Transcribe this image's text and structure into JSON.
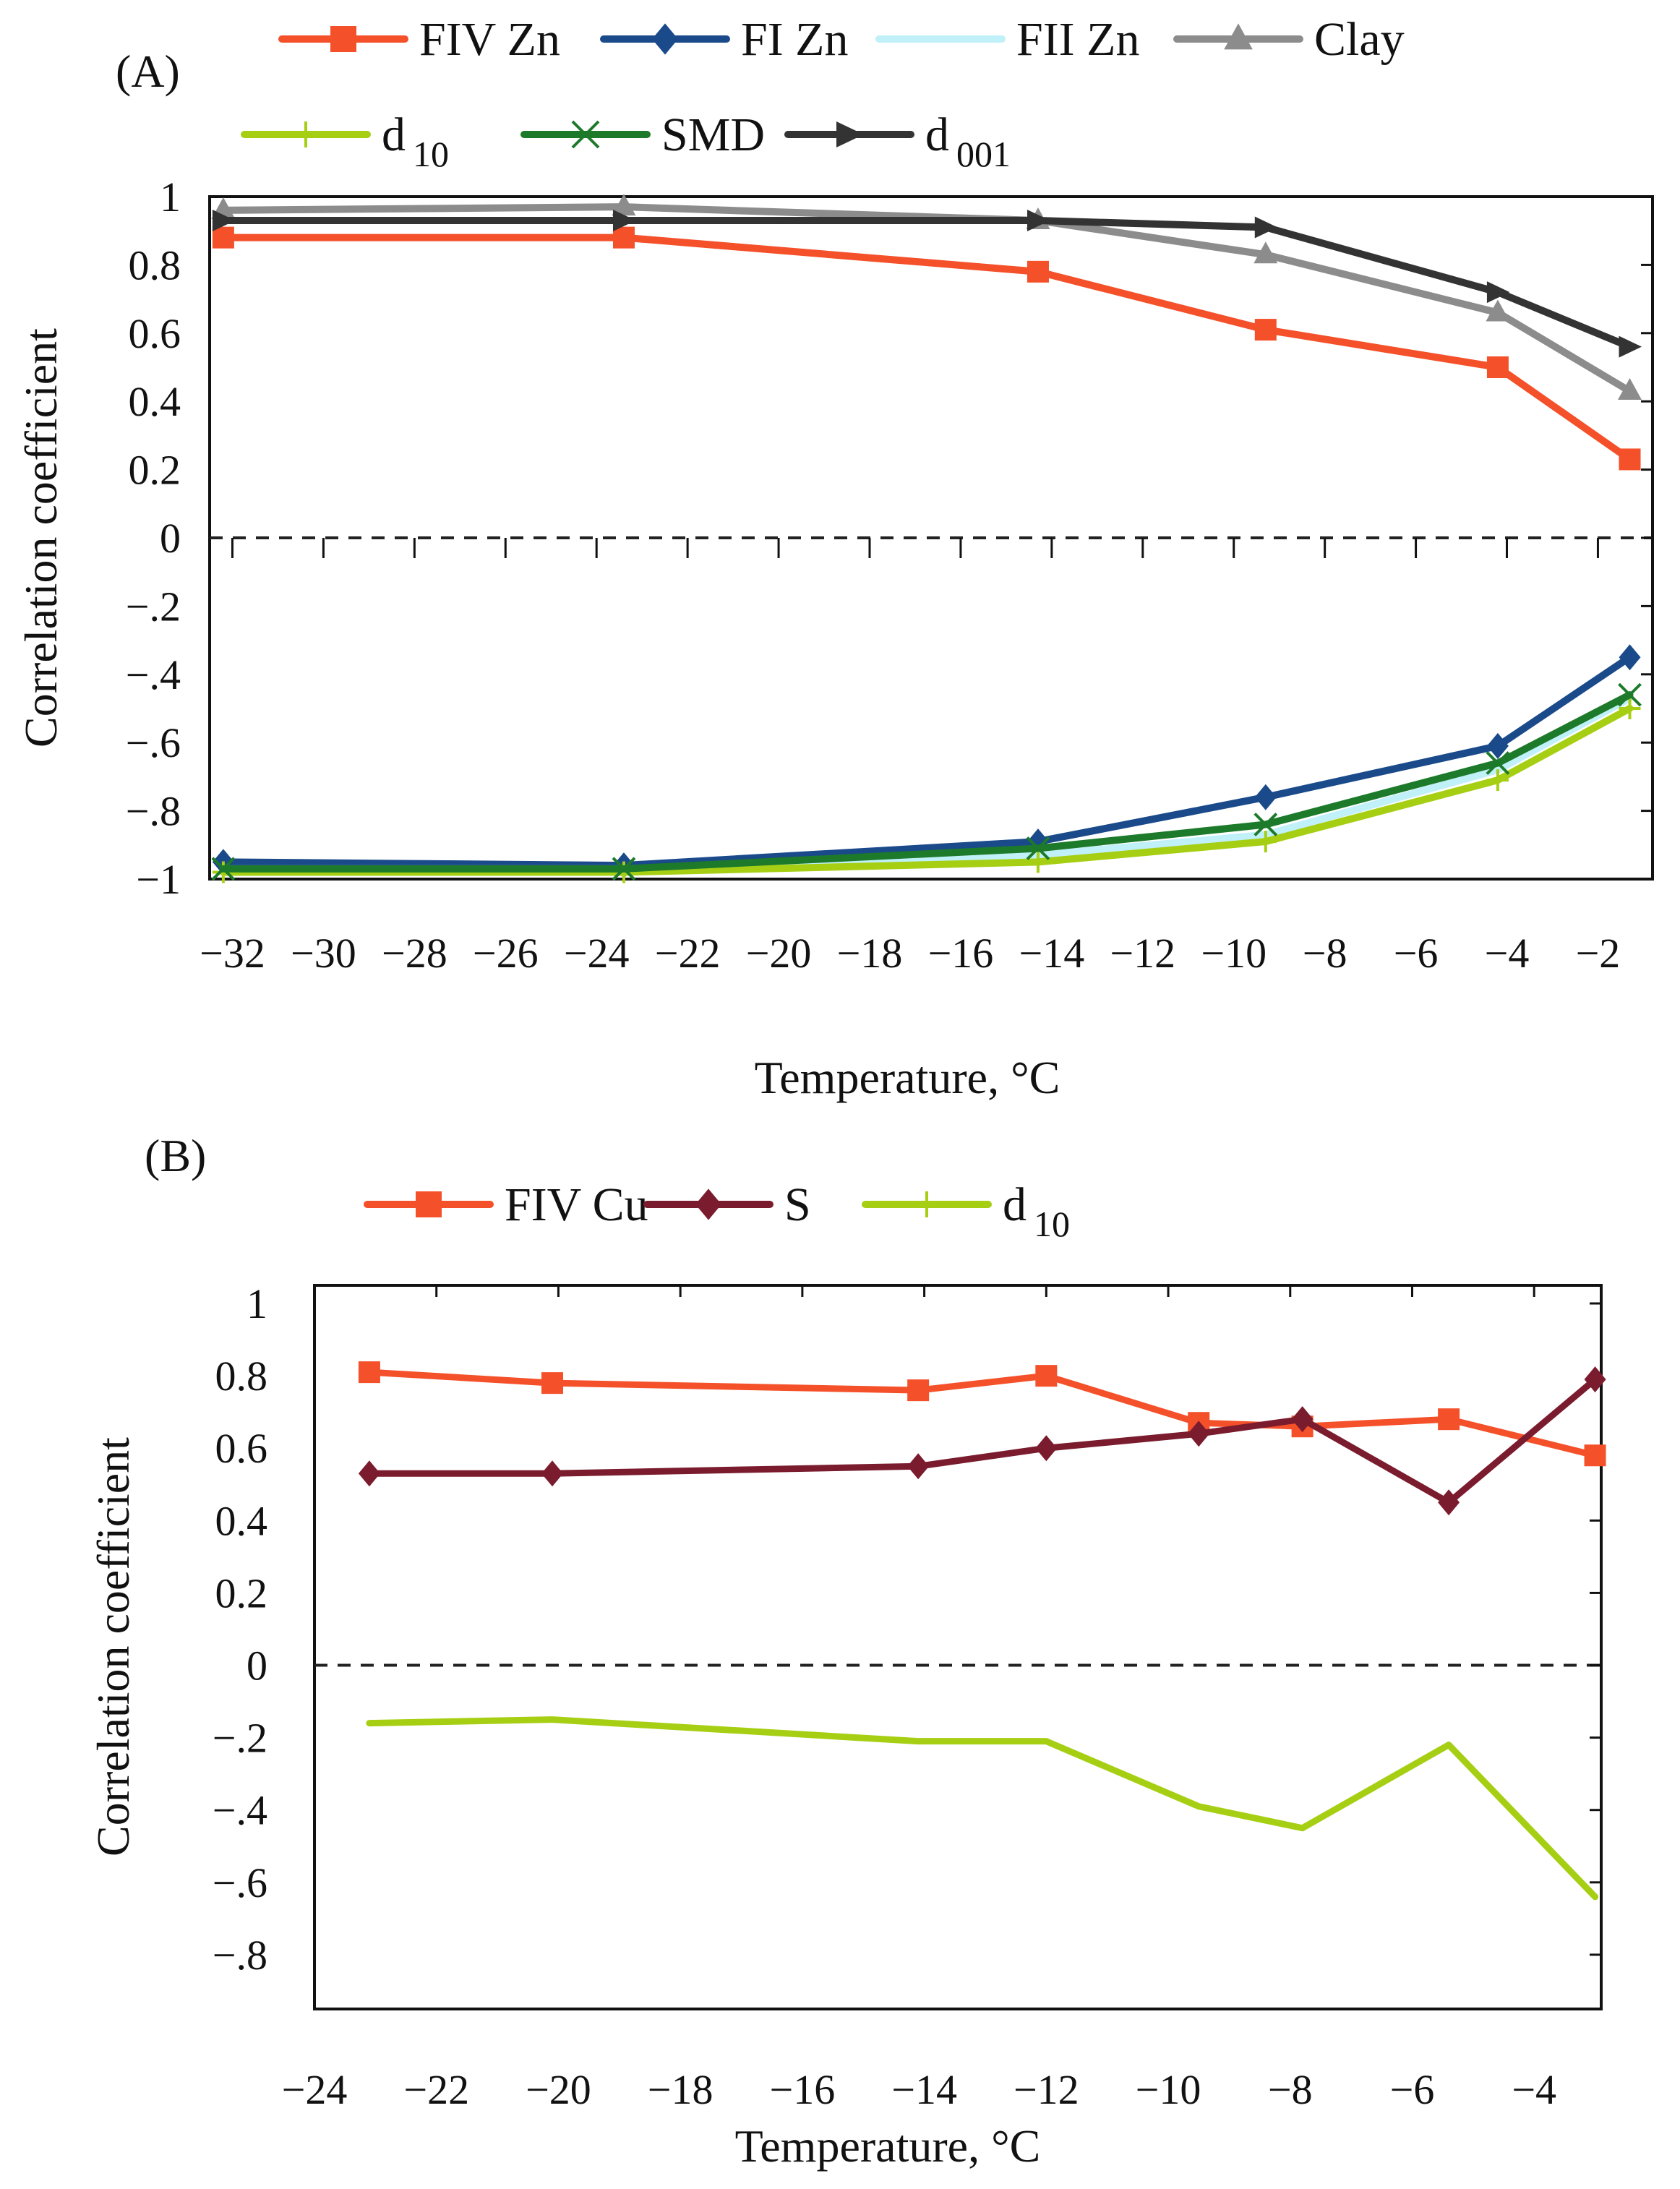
{
  "chart_data": [
    {
      "panel_label": "(A)",
      "type": "line",
      "xlabel": "Temperature, °C",
      "ylabel": "Correlation coefficient",
      "xlim": [
        -32.5,
        -0.8
      ],
      "ylim": [
        -1,
        1
      ],
      "xticks": [
        -32,
        -30,
        -28,
        -26,
        -24,
        -22,
        -20,
        -18,
        -16,
        -14,
        -12,
        -10,
        -8,
        -6,
        -4,
        -2
      ],
      "yticks": [
        1,
        0.8,
        0.6,
        0.4,
        0.2,
        0,
        -0.2,
        -0.4,
        -0.6,
        -0.8,
        -1
      ],
      "zero_line": "dashed",
      "grid": false,
      "legend_position": "top",
      "series": [
        {
          "label_main": "FIV Zn",
          "label_sub": "",
          "color": "#f4502a",
          "marker": "square",
          "x": [
            -32.2,
            -23.4,
            -14.3,
            -9.3,
            -4.2,
            -1.3
          ],
          "y": [
            0.88,
            0.88,
            0.78,
            0.61,
            0.5,
            0.23
          ]
        },
        {
          "label_main": "FI Zn",
          "label_sub": "",
          "color": "#1a4a8a",
          "marker": "diamond",
          "x": [
            -32.2,
            -23.4,
            -14.3,
            -9.3,
            -4.2,
            -1.3
          ],
          "y": [
            -0.95,
            -0.96,
            -0.89,
            -0.76,
            -0.61,
            -0.35
          ]
        },
        {
          "label_main": "FII Zn",
          "label_sub": "",
          "color": "#c0f0f8",
          "marker": "none",
          "x": [
            -32.2,
            -23.4,
            -14.3,
            -9.3,
            -4.2,
            -1.3
          ],
          "y": [
            -0.97,
            -0.97,
            -0.93,
            -0.87,
            -0.68,
            -0.47
          ]
        },
        {
          "label_main": "Clay",
          "label_sub": "",
          "color": "#8c8c8c",
          "marker": "triangle",
          "x": [
            -32.2,
            -23.4,
            -14.3,
            -9.3,
            -4.2,
            -1.3
          ],
          "y": [
            0.96,
            0.97,
            0.93,
            0.83,
            0.66,
            0.43
          ]
        },
        {
          "label_main": "d",
          "label_sub": "10",
          "color": "#a6cf14",
          "marker": "plus",
          "x": [
            -32.2,
            -23.4,
            -14.3,
            -9.3,
            -4.2,
            -1.3
          ],
          "y": [
            -0.98,
            -0.98,
            -0.95,
            -0.89,
            -0.71,
            -0.5
          ]
        },
        {
          "label_main": "SMD",
          "label_sub": "",
          "color": "#1c7a2a",
          "marker": "x",
          "x": [
            -32.2,
            -23.4,
            -14.3,
            -9.3,
            -4.2,
            -1.3
          ],
          "y": [
            -0.97,
            -0.97,
            -0.91,
            -0.84,
            -0.66,
            -0.46
          ]
        },
        {
          "label_main": "d",
          "label_sub": "001",
          "color": "#333333",
          "marker": "arrow",
          "x": [
            -32.2,
            -23.4,
            -14.3,
            -9.3,
            -4.2,
            -1.3
          ],
          "y": [
            0.93,
            0.93,
            0.93,
            0.91,
            0.72,
            0.56
          ]
        }
      ]
    },
    {
      "panel_label": "(B)",
      "type": "line",
      "xlabel": "Temperature, °C",
      "ylabel": "Correlation coefficient",
      "xlim": [
        -24,
        -2.9
      ],
      "ylim": [
        -0.95,
        1.05
      ],
      "xticks": [
        -24,
        -22,
        -20,
        -18,
        -16,
        -14,
        -12,
        -10,
        -8,
        -6,
        -4
      ],
      "yticks": [
        1,
        0.8,
        0.6,
        0.4,
        0.2,
        0,
        -0.2,
        -0.4,
        -0.6,
        -0.8
      ],
      "zero_line": "dashed",
      "grid": false,
      "legend_position": "top",
      "series": [
        {
          "label_main": "FIV Cu",
          "label_sub": "",
          "color": "#f4502a",
          "marker": "square",
          "x": [
            -23.1,
            -20.1,
            -14.1,
            -12.0,
            -9.5,
            -7.8,
            -5.4,
            -3.0
          ],
          "y": [
            0.81,
            0.78,
            0.76,
            0.8,
            0.67,
            0.66,
            0.68,
            0.58
          ]
        },
        {
          "label_main": "S",
          "label_sub": "",
          "color": "#7a1c2e",
          "marker": "diamond",
          "x": [
            -23.1,
            -20.1,
            -14.1,
            -12.0,
            -9.5,
            -7.8,
            -5.4,
            -3.0
          ],
          "y": [
            0.53,
            0.53,
            0.55,
            0.6,
            0.64,
            0.68,
            0.45,
            0.79
          ]
        },
        {
          "label_main": "d",
          "label_sub": "10",
          "color": "#a6cf14",
          "marker": "plus",
          "x": [
            -23.1,
            -20.1,
            -14.1,
            -12.0,
            -9.5,
            -7.8,
            -5.4,
            -3.0
          ],
          "y": [
            -0.16,
            -0.15,
            -0.21,
            -0.21,
            -0.39,
            -0.45,
            -0.22,
            -0.64
          ]
        }
      ]
    }
  ]
}
